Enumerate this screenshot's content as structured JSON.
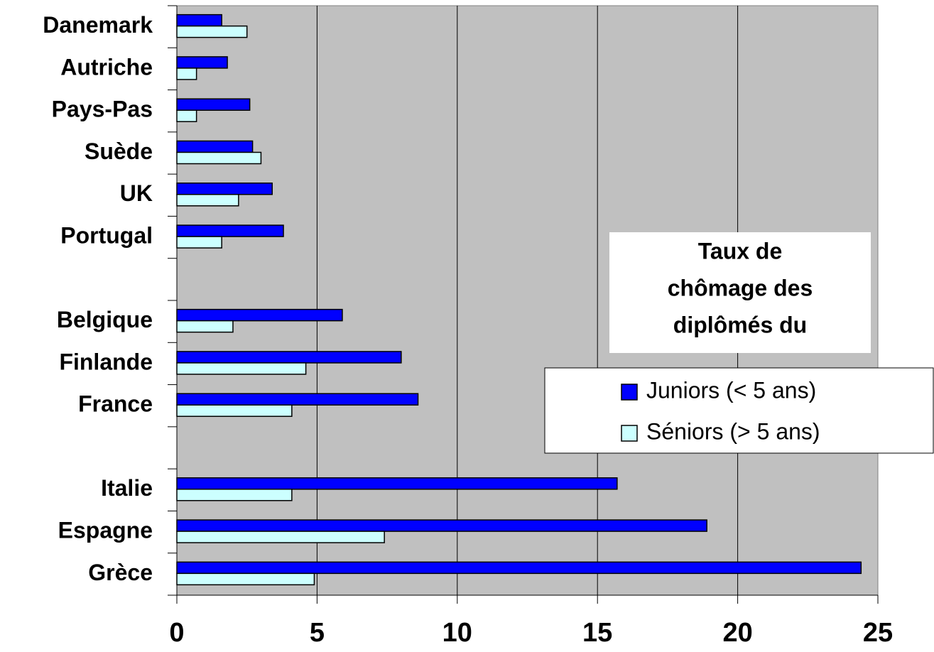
{
  "chart_data": {
    "type": "hbar",
    "legend_title": [
      "Taux de",
      "chômage des",
      "diplômés du"
    ],
    "categories": [
      "Danemark",
      "Autriche",
      "Pays-Pas",
      "Suède",
      "UK",
      "Portugal",
      null,
      "Belgique",
      "Finlande",
      "France",
      null,
      "Italie",
      "Espagne",
      "Grèce"
    ],
    "series": [
      {
        "name": "Juniors (< 5 ans)",
        "color": "#0000ff",
        "values": [
          1.6,
          1.8,
          2.6,
          2.7,
          3.4,
          3.8,
          null,
          5.9,
          8.0,
          8.6,
          null,
          15.7,
          18.9,
          24.4
        ]
      },
      {
        "name": "Séniors (> 5 ans)",
        "color": "#ccffff",
        "values": [
          2.5,
          0.7,
          0.7,
          3.0,
          2.2,
          1.6,
          null,
          2.0,
          4.6,
          4.1,
          null,
          4.1,
          7.4,
          4.9
        ]
      }
    ],
    "xlim": [
      0,
      25
    ],
    "xticks": [
      0,
      5,
      10,
      15,
      20,
      25
    ],
    "grid": true
  }
}
